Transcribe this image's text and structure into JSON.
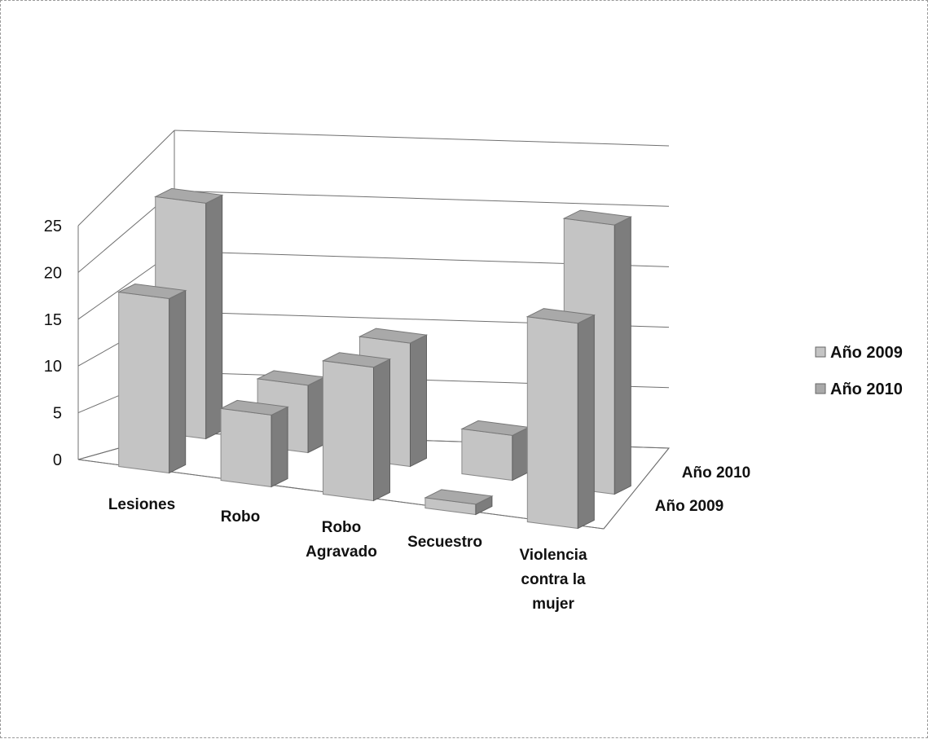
{
  "chart_data": {
    "type": "bar",
    "subtype": "3d-column",
    "categories": [
      [
        "Lesiones"
      ],
      [
        "Robo"
      ],
      [
        "Robo",
        "Agravado"
      ],
      [
        "Secuestro"
      ],
      [
        "Violencia",
        "contra la",
        "mujer"
      ]
    ],
    "series": [
      {
        "name": "Año 2009",
        "values": [
          17,
          7,
          13,
          1,
          20
        ]
      },
      {
        "name": "Año 2010",
        "values": [
          21,
          6,
          11,
          4,
          24
        ]
      }
    ],
    "depth_labels": [
      "Año 2009",
      "Año 2010"
    ],
    "ylim": [
      0,
      25
    ],
    "yticks": [
      "0",
      "5",
      "10",
      "15",
      "20",
      "25"
    ],
    "grid": true,
    "legend": {
      "position": "right",
      "entries": [
        "Año 2009",
        "Año 2010"
      ]
    },
    "colors": {
      "front": "#c4c4c4",
      "side": "#7d7d7d",
      "top": "#a9a9a9",
      "grid": "#707070"
    }
  }
}
